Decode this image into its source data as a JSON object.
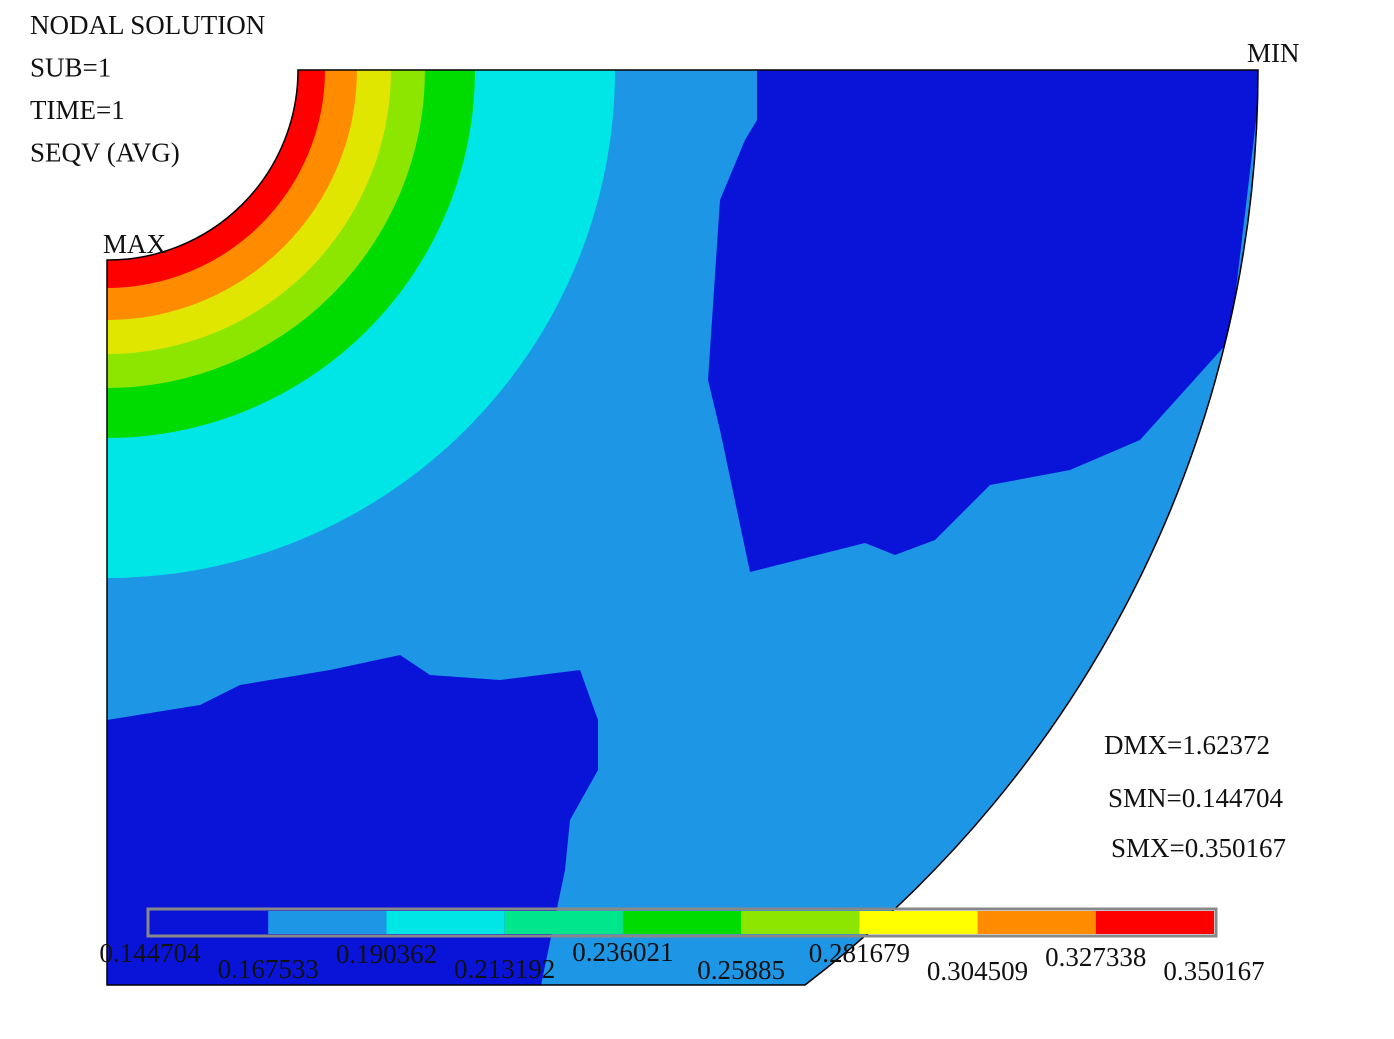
{
  "header": {
    "lines": [
      "NODAL SOLUTION",
      "SUB=1",
      "TIME=1",
      "SEQV  (AVG)"
    ]
  },
  "markers": {
    "max": "MAX",
    "min": "MIN"
  },
  "stats": [
    "DMX=1.62372",
    "SMN=0.144704",
    "SMX=0.350167"
  ],
  "legend": {
    "labels": [
      "0.144704",
      "0.167533",
      "0.190362",
      "0.213192",
      "0.236021",
      "0.25885",
      "0.281679",
      "0.304509",
      "0.327338",
      "0.350167"
    ],
    "colors": [
      "#0a14d8",
      "#1e96e6",
      "#00e6e6",
      "#00e68c",
      "#00dc00",
      "#8ce600",
      "#ffff00",
      "#ff8c00",
      "#ff0000"
    ]
  }
}
